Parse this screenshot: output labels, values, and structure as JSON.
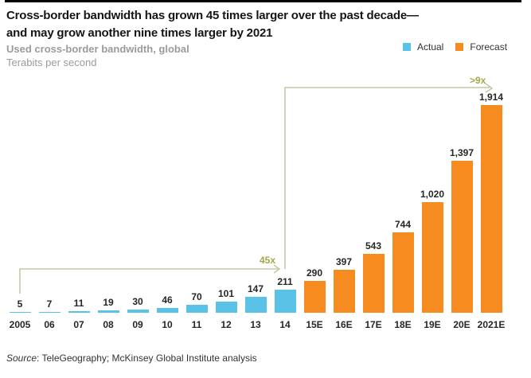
{
  "title": {
    "line1": "Cross-border bandwidth has grown 45 times larger over the past decade—",
    "line2": "and may grow another nine times larger by 2021"
  },
  "subtitle": "Used cross-border bandwidth, global",
  "unit": "Terabits per second",
  "legend": [
    {
      "label": "Actual",
      "color": "#5BC2E7"
    },
    {
      "label": "Forecast",
      "color": "#F68B1F"
    }
  ],
  "annotations": {
    "growth_past": "45x",
    "growth_future": ">9x"
  },
  "source": {
    "prefix": "Source",
    "text": ": TeleGeography; McKinsey Global Institute analysis"
  },
  "colors": {
    "actual": "#5BC2E7",
    "forecast": "#F68B1F",
    "annotation_line": "#bcbb95",
    "annotation_text": "#a4a746",
    "subtitle_gray": "#9b9b9b"
  },
  "chart_data": {
    "type": "bar",
    "title": "Used cross-border bandwidth, global",
    "ylabel": "Terabits per second",
    "categories": [
      "2005",
      "06",
      "07",
      "08",
      "09",
      "10",
      "11",
      "12",
      "13",
      "14",
      "15E",
      "16E",
      "17E",
      "18E",
      "19E",
      "20E",
      "2021E"
    ],
    "values": [
      5,
      7,
      11,
      19,
      30,
      46,
      70,
      101,
      147,
      211,
      290,
      397,
      543,
      744,
      1020,
      1397,
      1914
    ],
    "value_labels": [
      "5",
      "7",
      "11",
      "19",
      "30",
      "46",
      "70",
      "101",
      "147",
      "211",
      "290",
      "397",
      "543",
      "744",
      "1,020",
      "1,397",
      "1,914"
    ],
    "series": [
      {
        "name": "Actual",
        "color": "#5BC2E7",
        "categories_covered": [
          "2005",
          "06",
          "07",
          "08",
          "09",
          "10",
          "11",
          "12",
          "13",
          "14"
        ]
      },
      {
        "name": "Forecast",
        "color": "#F68B1F",
        "categories_covered": [
          "15E",
          "16E",
          "17E",
          "18E",
          "19E",
          "20E",
          "2021E"
        ]
      }
    ],
    "actual_count": 10,
    "ylim": [
      0,
      2000
    ],
    "grid": false,
    "legend_position": "top-right",
    "annotations": [
      {
        "label": "45x",
        "meaning": "growth from 2005 to 2014"
      },
      {
        "label": ">9x",
        "meaning": "growth from 2014 to 2021E"
      }
    ]
  }
}
